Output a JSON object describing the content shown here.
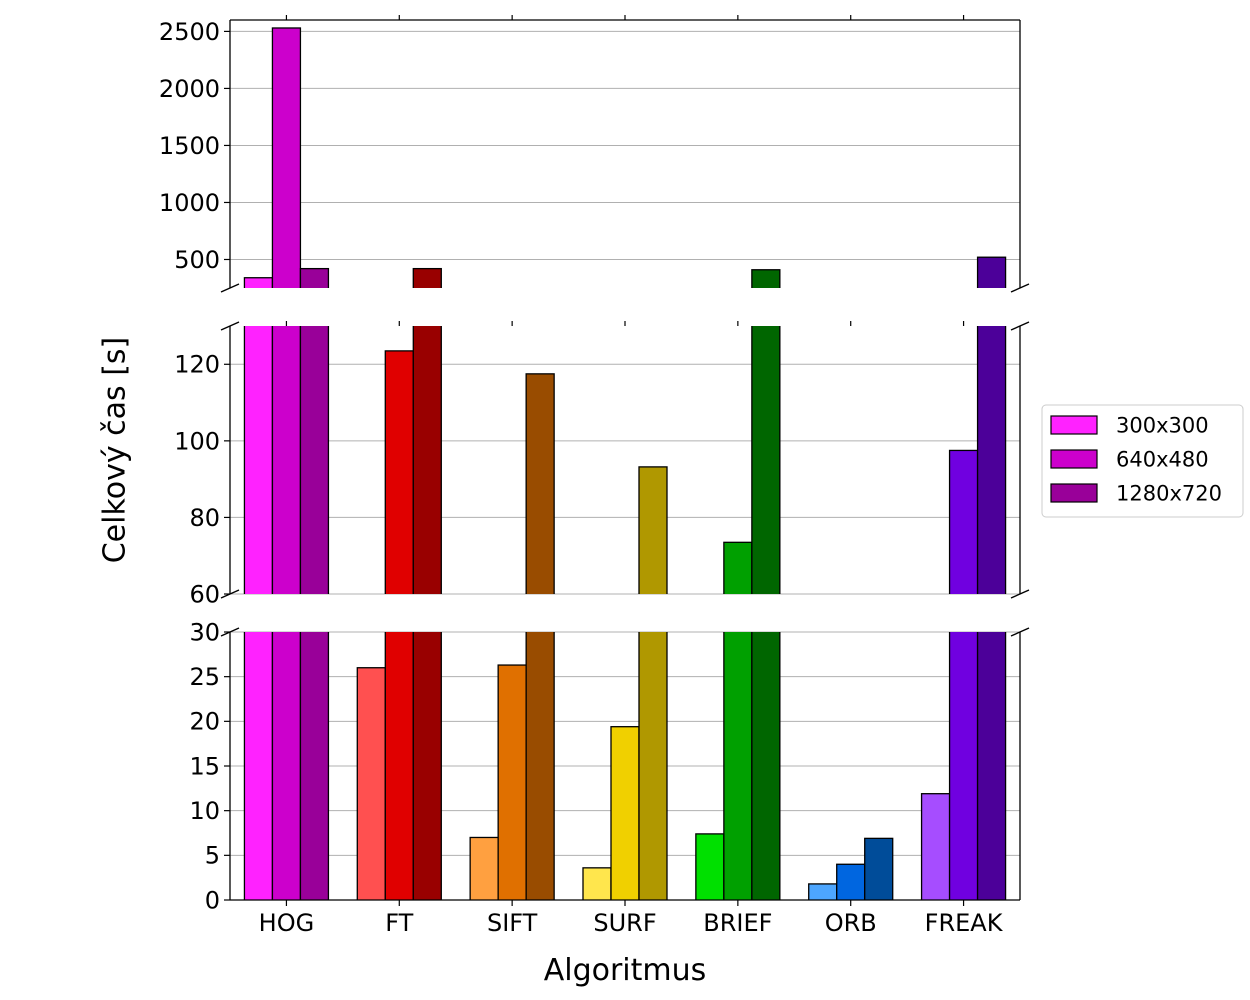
{
  "chart_data": {
    "type": "bar",
    "broken_y_axis": true,
    "xlabel": "Algoritmus",
    "ylabel": "Celkový čas [s]",
    "categories": [
      "HOG",
      "FT",
      "SIFT",
      "SURF",
      "BRIEF",
      "ORB",
      "FREAK"
    ],
    "series": [
      {
        "name": "300x300",
        "values": [
          340,
          26,
          7,
          3.6,
          7.4,
          1.8,
          11.9
        ]
      },
      {
        "name": "640x480",
        "values": [
          2530,
          123.5,
          26.3,
          19.4,
          73.5,
          4.0,
          97.5
        ]
      },
      {
        "name": "1280x720",
        "values": [
          420,
          420,
          117.5,
          93.2,
          410,
          6.9,
          520
        ]
      }
    ],
    "bar_colors": [
      [
        "#ff22ff",
        "#cc00cc",
        "#990099"
      ],
      [
        "#ff5050",
        "#e00000",
        "#990000"
      ],
      [
        "#ffa040",
        "#e07000",
        "#994c00"
      ],
      [
        "#ffe64d",
        "#f0d000",
        "#b09800"
      ],
      [
        "#00e000",
        "#00a000",
        "#006600"
      ],
      [
        "#4da6ff",
        "#0066e0",
        "#004c99"
      ],
      [
        "#a64dff",
        "#7000e0",
        "#4c0099"
      ]
    ],
    "legend_colors": [
      "#ff22ff",
      "#cc00cc",
      "#990099"
    ],
    "panels": [
      {
        "ylim": [
          250,
          2600
        ],
        "ticks": [
          500,
          1000,
          1500,
          2000,
          2500
        ]
      },
      {
        "ylim": [
          60,
          130
        ],
        "ticks": [
          60,
          80,
          100,
          120
        ]
      },
      {
        "ylim": [
          0,
          30
        ],
        "ticks": [
          0,
          5,
          10,
          15,
          20,
          25,
          30
        ]
      }
    ],
    "grid": true,
    "legend_position": "right"
  }
}
